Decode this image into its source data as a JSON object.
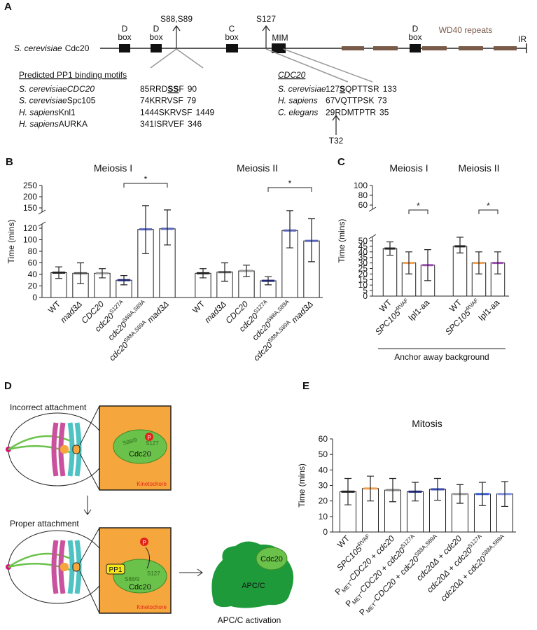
{
  "panel_a": {
    "label": "A",
    "gene": {
      "organism": "S. cerevisiae",
      "protein": "Cdc20"
    },
    "boxes": [
      [
        "D",
        "box"
      ],
      [
        "D",
        "box"
      ],
      [
        "C",
        "box"
      ],
      [
        "D",
        "box"
      ]
    ],
    "mim": "MIM",
    "sites": [
      "S88,S89",
      "S127"
    ],
    "wd40": "WD40 repeats",
    "ir": "IR",
    "motifs": {
      "title": "Predicted PP1 binding motifs",
      "rows": [
        {
          "organism": "S. cerevisiae",
          "protein": [
            [
              "CDC20",
              "i"
            ]
          ],
          "start": 85,
          "sequence": [
            [
              "RRD",
              ""
            ],
            [
              "SS",
              "b u"
            ],
            [
              "F",
              ""
            ]
          ],
          "end": 90
        },
        {
          "organism": "S. cerevisiae",
          "protein": [
            [
              "Spc105",
              ""
            ]
          ],
          "start": 74,
          "sequence": [
            [
              "KRRVSF",
              ""
            ]
          ],
          "end": 79
        },
        {
          "organism": "H. sapiens",
          "protein": [
            [
              "Knl1",
              ""
            ]
          ],
          "start": 1444,
          "sequence": [
            [
              "SKRVSF",
              ""
            ]
          ],
          "end": 1449
        },
        {
          "organism": "H. sapiens",
          "protein": [
            [
              "AURKA",
              ""
            ]
          ],
          "start": 341,
          "sequence": [
            [
              "ISRVEF",
              ""
            ]
          ],
          "end": 346
        }
      ]
    },
    "cdc20": {
      "title": "CDC20",
      "rows": [
        {
          "organism": "S. cerevisiae",
          "start": 127,
          "sequence": [
            [
              "S",
              "b u"
            ],
            [
              "QPTTSR",
              ""
            ]
          ],
          "end": 133
        },
        {
          "organism": "H. sapiens",
          "start": 67,
          "sequence": [
            [
              "VQTTPSK",
              ""
            ]
          ],
          "end": 73
        },
        {
          "organism": "C. elegans",
          "start": 29,
          "sequence": [
            [
              "RDMTPTR",
              ""
            ]
          ],
          "end": 35
        }
      ],
      "site": "T32"
    }
  },
  "chart_data": [
    {
      "type": "bar",
      "panel": "B",
      "ylabel": "Time (mins)",
      "ylim": [
        0,
        120
      ],
      "yticks": [
        0,
        20,
        40,
        60,
        80,
        100,
        120
      ],
      "break_ylim": [
        150,
        250
      ],
      "break_yticks": [
        150,
        200,
        250
      ],
      "groups": [
        {
          "name": "Meiosis I",
          "categories": [
            [
              [
                "WT",
                ""
              ]
            ],
            [
              [
                "mad3Δ",
                "i"
              ]
            ],
            [
              [
                "CDC20",
                "i"
              ]
            ],
            [
              [
                "cdc20",
                "i"
              ],
              [
                "S127A",
                "sup"
              ]
            ],
            [
              [
                "cdc20",
                "i"
              ],
              [
                "S88A,S89A",
                "sup"
              ]
            ],
            [
              [
                "cdc20",
                "i"
              ],
              [
                "S88A,S89A",
                "sup"
              ],
              [
                " mad3Δ",
                "i"
              ]
            ]
          ],
          "values": [
            43,
            42,
            42,
            30,
            118,
            119
          ],
          "errors": [
            10,
            18,
            8,
            8,
            42,
            28
          ],
          "colors": [
            "#222222",
            "#555555",
            "#999999",
            "#1f2a7a",
            "#5a66b8",
            "#5a66b8"
          ]
        },
        {
          "name": "Meiosis II",
          "categories": [
            [
              [
                "WT",
                ""
              ]
            ],
            [
              [
                "mad3Δ",
                "i"
              ]
            ],
            [
              [
                "CDC20",
                "i"
              ]
            ],
            [
              [
                "cdc20",
                "i"
              ],
              [
                "S127A",
                "sup"
              ]
            ],
            [
              [
                "cdc20",
                "i"
              ],
              [
                "S88A,S89A",
                "sup"
              ]
            ],
            [
              [
                "cdc20",
                "i"
              ],
              [
                "S88A,S89A",
                "sup"
              ],
              [
                " mad3Δ",
                "i"
              ]
            ]
          ],
          "values": [
            42,
            44,
            46,
            29,
            116,
            98
          ],
          "errors": [
            8,
            16,
            10,
            7,
            30,
            36
          ],
          "colors": [
            "#222222",
            "#555555",
            "#999999",
            "#1f2a7a",
            "#5a66b8",
            "#5a66b8"
          ]
        }
      ],
      "annotations": [
        "*",
        "*"
      ]
    },
    {
      "type": "bar",
      "panel": "C",
      "ylabel": "Time (mins)",
      "ylim": [
        0,
        50
      ],
      "yticks": [
        0,
        5,
        10,
        15,
        20,
        25,
        30,
        35,
        40,
        45,
        50
      ],
      "break_ylim": [
        60,
        100
      ],
      "break_yticks": [
        60,
        80,
        100
      ],
      "groups": [
        {
          "name": "Meiosis I",
          "categories": [
            [
              [
                "WT",
                ""
              ]
            ],
            [
              [
                "SPC105",
                "i"
              ],
              [
                "RVAF",
                "sup"
              ]
            ],
            [
              [
                "Ipl1-aa",
                ""
              ]
            ]
          ],
          "values": [
            43,
            30,
            28
          ],
          "errors": [
            6,
            10,
            14
          ],
          "colors": [
            "#222222",
            "#f0a050",
            "#9b4fb0"
          ]
        },
        {
          "name": "Meiosis II",
          "categories": [
            [
              [
                "WT",
                ""
              ]
            ],
            [
              [
                "SPC105",
                "i"
              ],
              [
                "RVAF",
                "sup"
              ]
            ],
            [
              [
                "Ipl1-aa",
                ""
              ]
            ]
          ],
          "values": [
            45,
            30,
            30
          ],
          "errors": [
            6,
            10,
            10
          ],
          "colors": [
            "#222222",
            "#f0a050",
            "#9b4fb0"
          ]
        }
      ],
      "annotations": [
        "*",
        "*"
      ],
      "footnote": "Anchor away background"
    },
    {
      "type": "bar",
      "panel": "E",
      "title": "Mitosis",
      "ylabel": "Time (mins)",
      "ylim": [
        0,
        60
      ],
      "yticks": [
        0,
        10,
        20,
        30,
        40,
        50,
        60
      ],
      "groups": [
        {
          "categories": [
            [
              [
                "WT",
                ""
              ]
            ],
            [
              [
                "SPC105",
                "i"
              ],
              [
                "RVAF",
                "sup"
              ]
            ],
            [
              [
                "P",
                ""
              ],
              [
                "MET",
                "sub"
              ],
              [
                "-CDC20 + cdc20",
                "i"
              ]
            ],
            [
              [
                "P",
                ""
              ],
              [
                "MET",
                "sub"
              ],
              [
                "-CDC20 + cdc20",
                "i"
              ],
              [
                "S127A",
                "sup"
              ]
            ],
            [
              [
                "P",
                ""
              ],
              [
                "MET",
                "sub"
              ],
              [
                "-CDC20 + cdc20",
                "i"
              ],
              [
                "S88A,S89A",
                "sup"
              ]
            ],
            [
              [
                "cdc20Δ + cdc20",
                "i"
              ]
            ],
            [
              [
                "cdc20Δ + cdc20",
                "i"
              ],
              [
                "S127A",
                "sup"
              ]
            ],
            [
              [
                "cdc20Δ + cdc20",
                "i"
              ],
              [
                "S88A,S89A",
                "sup"
              ]
            ]
          ],
          "values": [
            26,
            28,
            27,
            26,
            27.5,
            24.5,
            24.5,
            24.5
          ],
          "errors": [
            8.5,
            8,
            7.5,
            6,
            7,
            6,
            7.5,
            8
          ],
          "colors": [
            "#222222",
            "#f0a050",
            "#888888",
            "#1f2a7a",
            "#3a4aa8",
            "#999999",
            "#3a5bd0",
            "#8090e0"
          ]
        }
      ],
      "annotations": []
    }
  ],
  "diagram_d": {
    "label": "D",
    "incorrect": "Incorrect attachment",
    "proper": "Proper attachment",
    "s88": "S88/9",
    "s127": "S127",
    "p": "P",
    "cdc20": "Cdc20",
    "kinetochore": "Kinetochore",
    "pp1": "PP1",
    "apcc": "APC/C",
    "activation": "APC/C activation"
  }
}
